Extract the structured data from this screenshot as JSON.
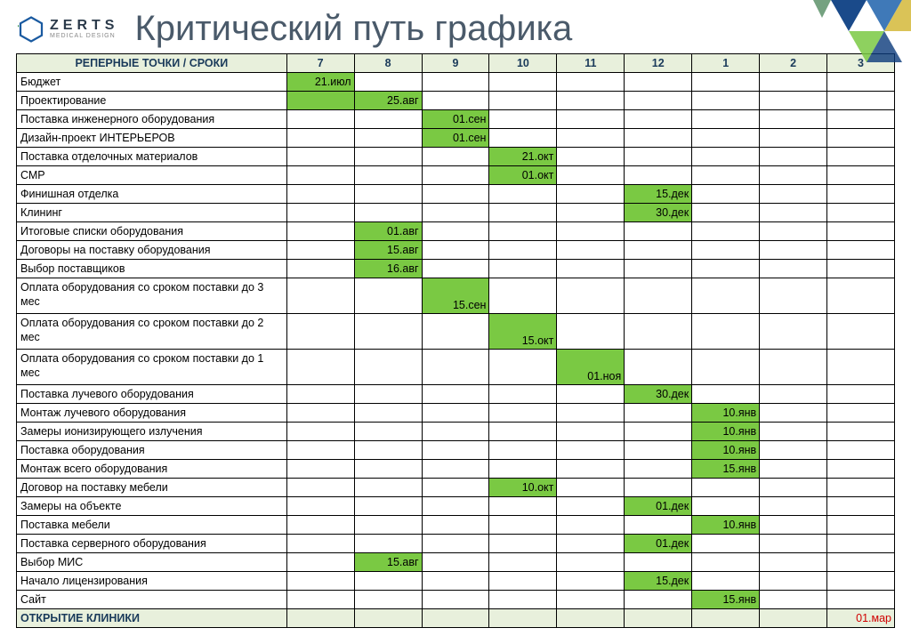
{
  "logo": {
    "main": "ZERTS",
    "sub": "MEDICAL DESIGN"
  },
  "title": "Критический путь графика",
  "table": {
    "header_label": "РЕПЕРНЫЕ ТОЧКИ / СРОКИ",
    "months": [
      "7",
      "8",
      "9",
      "10",
      "11",
      "12",
      "1",
      "2",
      "3"
    ],
    "rows": [
      {
        "label": "Бюджет",
        "cells": [
          "21.июл",
          "",
          "",
          "",
          "",
          "",
          "",
          "",
          ""
        ],
        "filled": [
          0
        ]
      },
      {
        "label": "Проектирование",
        "cells": [
          "",
          "25.авг",
          "",
          "",
          "",
          "",
          "",
          "",
          ""
        ],
        "filled": [
          0,
          1
        ]
      },
      {
        "label": "Поставка инженерного оборудования",
        "cells": [
          "",
          "",
          "01.сен",
          "",
          "",
          "",
          "",
          "",
          ""
        ],
        "filled": [
          2
        ]
      },
      {
        "label": "Дизайн-проект ИНТЕРЬЕРОВ",
        "cells": [
          "",
          "",
          "01.сен",
          "",
          "",
          "",
          "",
          "",
          ""
        ],
        "filled": [
          2
        ]
      },
      {
        "label": "Поставка отделочных материалов",
        "cells": [
          "",
          "",
          "",
          "21.окт",
          "",
          "",
          "",
          "",
          ""
        ],
        "filled": [
          3
        ]
      },
      {
        "label": "СМР",
        "cells": [
          "",
          "",
          "",
          "01.окт",
          "",
          "",
          "",
          "",
          ""
        ],
        "filled": [
          3
        ]
      },
      {
        "label": "Финишная отделка",
        "cells": [
          "",
          "",
          "",
          "",
          "",
          "15.дек",
          "",
          "",
          ""
        ],
        "filled": [
          5
        ]
      },
      {
        "label": "Клининг",
        "cells": [
          "",
          "",
          "",
          "",
          "",
          "30.дек",
          "",
          "",
          ""
        ],
        "filled": [
          5
        ]
      },
      {
        "label": "Итоговые списки оборудования",
        "cells": [
          "",
          "01.авг",
          "",
          "",
          "",
          "",
          "",
          "",
          ""
        ],
        "filled": [
          1
        ]
      },
      {
        "label": "Договоры на поставку оборудования",
        "cells": [
          "",
          "15.авг",
          "",
          "",
          "",
          "",
          "",
          "",
          ""
        ],
        "filled": [
          1
        ]
      },
      {
        "label": "Выбор поставщиков",
        "cells": [
          "",
          "16.авг",
          "",
          "",
          "",
          "",
          "",
          "",
          ""
        ],
        "filled": [
          1
        ]
      },
      {
        "label": "Оплата  оборудования со сроком поставки до 3 мес",
        "tall": true,
        "cells": [
          "",
          "",
          "15.сен",
          "",
          "",
          "",
          "",
          "",
          ""
        ],
        "filled": [
          2
        ]
      },
      {
        "label": "Оплата оборудования со сроком поставки до 2 мес",
        "tall": true,
        "cells": [
          "",
          "",
          "",
          "15.окт",
          "",
          "",
          "",
          "",
          ""
        ],
        "filled": [
          3
        ]
      },
      {
        "label": "Оплата оборудования со сроком поставки до 1 мес",
        "tall": true,
        "cells": [
          "",
          "",
          "",
          "",
          "01.ноя",
          "",
          "",
          "",
          ""
        ],
        "filled": [
          4
        ]
      },
      {
        "label": "Поставка лучевого оборудования",
        "cells": [
          "",
          "",
          "",
          "",
          "",
          "30.дек",
          "",
          "",
          ""
        ],
        "filled": [
          5
        ]
      },
      {
        "label": "Монтаж лучевого оборудования",
        "cells": [
          "",
          "",
          "",
          "",
          "",
          "",
          "10.янв",
          "",
          ""
        ],
        "filled": [
          6
        ]
      },
      {
        "label": "Замеры ионизирующего излучения",
        "cells": [
          "",
          "",
          "",
          "",
          "",
          "",
          "10.янв",
          "",
          ""
        ],
        "filled": [
          6
        ]
      },
      {
        "label": "Поставка   оборудования",
        "cells": [
          "",
          "",
          "",
          "",
          "",
          "",
          "10.янв",
          "",
          ""
        ],
        "filled": [
          6
        ]
      },
      {
        "label": "Монтаж всего оборудования",
        "cells": [
          "",
          "",
          "",
          "",
          "",
          "",
          "15.янв",
          "",
          ""
        ],
        "filled": [
          6
        ]
      },
      {
        "label": "Договор на поставку мебели",
        "cells": [
          "",
          "",
          "",
          "10.окт",
          "",
          "",
          "",
          "",
          ""
        ],
        "filled": [
          3
        ]
      },
      {
        "label": "Замеры на объекте",
        "cells": [
          "",
          "",
          "",
          "",
          "",
          "01.дек",
          "",
          "",
          ""
        ],
        "filled": [
          5
        ]
      },
      {
        "label": "Поставка мебели",
        "cells": [
          "",
          "",
          "",
          "",
          "",
          "",
          "10.янв",
          "",
          ""
        ],
        "filled": [
          6
        ]
      },
      {
        "label": "Поставка серверного оборудования",
        "cells": [
          "",
          "",
          "",
          "",
          "",
          "01.дек",
          "",
          "",
          ""
        ],
        "filled": [
          5
        ]
      },
      {
        "label": "Выбор МИС",
        "cells": [
          "",
          "15.авг",
          "",
          "",
          "",
          "",
          "",
          "",
          ""
        ],
        "filled": [
          1
        ]
      },
      {
        "label": "Начало лицензирования",
        "cells": [
          "",
          "",
          "",
          "",
          "",
          "15.дек",
          "",
          "",
          ""
        ],
        "filled": [
          5
        ]
      },
      {
        "label": "Сайт",
        "cells": [
          "",
          "",
          "",
          "",
          "",
          "",
          "15.янв",
          "",
          ""
        ],
        "filled": [
          6
        ]
      }
    ],
    "footer": {
      "label": "ОТКРЫТИЕ КЛИНИКИ",
      "value": "01.мар",
      "value_col": 8
    }
  },
  "colors": {
    "fill": "#7ac943",
    "header_bg": "#e8f0dc",
    "border": "#000000",
    "title": "#4a5a6a",
    "red": "#d00000"
  }
}
